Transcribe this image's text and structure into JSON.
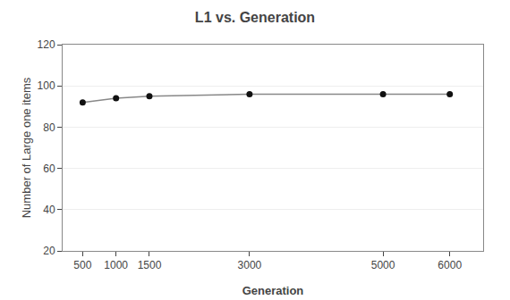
{
  "chart_data": {
    "type": "line",
    "title": "L1 vs. Generation",
    "xlabel": "Generation",
    "ylabel": "Number of Large one items",
    "x": [
      500,
      1000,
      1500,
      3000,
      5000,
      6000
    ],
    "values": [
      92,
      94,
      95,
      96,
      96,
      96
    ],
    "xlim": [
      200,
      6500
    ],
    "ylim": [
      20,
      120
    ],
    "xticks": [
      500,
      1000,
      1500,
      3000,
      5000,
      6000
    ],
    "yticks": [
      20,
      40,
      60,
      80,
      100,
      120
    ],
    "color": "#888888",
    "marker": "circle",
    "grid": "y"
  }
}
